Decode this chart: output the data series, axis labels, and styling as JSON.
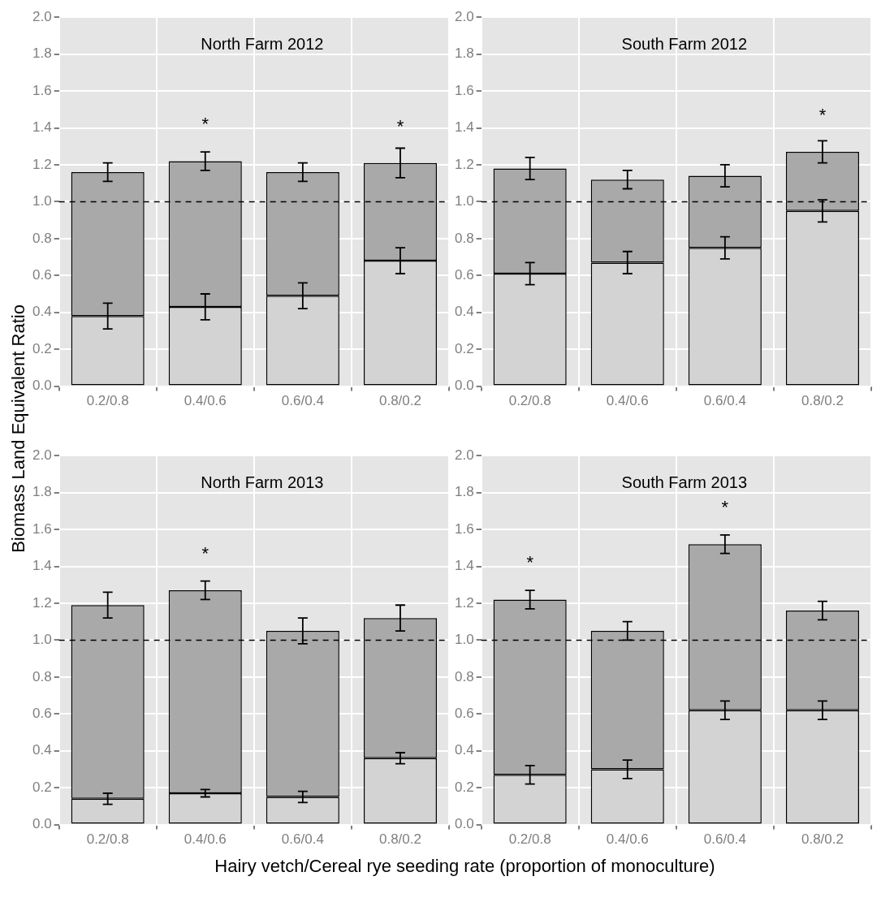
{
  "chart_data": [
    {
      "type": "bar",
      "title": "North Farm 2012",
      "ylabel": "Biomass Land Equivalent Ratio",
      "categories": [
        "0.2/0.8",
        "0.4/0.6",
        "0.6/0.4",
        "0.8/0.2"
      ],
      "stacked": true,
      "grid": true,
      "legend": false,
      "ylim": [
        0,
        2
      ],
      "yticks": [
        {
          "value": 0,
          "label": "0.0"
        },
        0.2,
        0.4,
        0.6,
        0.8,
        {
          "value": 1,
          "label": "1.0"
        },
        1.2,
        1.4,
        1.6,
        1.8,
        {
          "value": 2,
          "label": "2.0"
        }
      ],
      "series": [
        {
          "color": "#d3d3d3",
          "values": [
            0.38,
            0.43,
            0.49,
            0.68
          ],
          "errors": [
            0.07,
            0.07,
            0.07,
            0.07
          ]
        },
        {
          "color": "#a9a9a9",
          "values": [
            0.78,
            0.79,
            0.67,
            0.53
          ],
          "errors": [
            0.05,
            0.05,
            0.05,
            0.08
          ]
        }
      ],
      "ref_lines": [
        {
          "axis": "y",
          "value": 1,
          "line_style": "dashed",
          "color": "#000000"
        }
      ],
      "annotations": [
        {
          "text": "*",
          "x": "0.4/0.6",
          "y": 1.22
        },
        {
          "text": "*",
          "x": "0.8/0.2",
          "y": 1.21
        }
      ]
    },
    {
      "type": "bar",
      "title": "South Farm 2012",
      "categories": [
        "0.2/0.8",
        "0.4/0.6",
        "0.6/0.4",
        "0.8/0.2"
      ],
      "stacked": true,
      "grid": true,
      "legend": false,
      "ylim": [
        0,
        2
      ],
      "yticks": [
        {
          "value": 0,
          "label": "0.0"
        },
        0.2,
        0.4,
        0.6,
        0.8,
        {
          "value": 1,
          "label": "1.0"
        },
        1.2,
        1.4,
        1.6,
        1.8,
        {
          "value": 2,
          "label": "2.0"
        }
      ],
      "series": [
        {
          "color": "#d3d3d3",
          "values": [
            0.61,
            0.67,
            0.75,
            0.95
          ],
          "errors": [
            0.06,
            0.06,
            0.06,
            0.06
          ]
        },
        {
          "color": "#a9a9a9",
          "values": [
            0.57,
            0.45,
            0.39,
            0.32
          ],
          "errors": [
            0.06,
            0.05,
            0.06,
            0.06
          ]
        }
      ],
      "ref_lines": [
        {
          "axis": "y",
          "value": 1,
          "line_style": "dashed",
          "color": "#000000"
        }
      ],
      "annotations": [
        {
          "text": "*",
          "x": "0.8/0.2",
          "y": 1.27
        }
      ]
    },
    {
      "type": "bar",
      "title": "North Farm 2013",
      "xlabel": "Hairy vetch/Cereal rye seeding rate (proportion of monoculture)",
      "categories": [
        "0.2/0.8",
        "0.4/0.6",
        "0.6/0.4",
        "0.8/0.2"
      ],
      "stacked": true,
      "grid": true,
      "legend": false,
      "ylim": [
        0,
        2
      ],
      "yticks": [
        {
          "value": 0,
          "label": "0.0"
        },
        0.2,
        0.4,
        0.6,
        0.8,
        {
          "value": 1,
          "label": "1.0"
        },
        1.2,
        1.4,
        1.6,
        1.8,
        {
          "value": 2,
          "label": "2.0"
        }
      ],
      "series": [
        {
          "color": "#d3d3d3",
          "values": [
            0.14,
            0.17,
            0.15,
            0.36
          ],
          "errors": [
            0.03,
            0.02,
            0.03,
            0.03
          ]
        },
        {
          "color": "#a9a9a9",
          "values": [
            1.05,
            1.1,
            0.9,
            0.76
          ],
          "errors": [
            0.07,
            0.05,
            0.07,
            0.07
          ]
        }
      ],
      "ref_lines": [
        {
          "axis": "y",
          "value": 1,
          "line_style": "dashed",
          "color": "#000000"
        }
      ],
      "annotations": [
        {
          "text": "*",
          "x": "0.4/0.6",
          "y": 1.27
        }
      ]
    },
    {
      "type": "bar",
      "title": "South Farm 2013",
      "categories": [
        "0.2/0.8",
        "0.4/0.6",
        "0.6/0.4",
        "0.8/0.2"
      ],
      "stacked": true,
      "grid": true,
      "legend": false,
      "ylim": [
        0,
        2
      ],
      "yticks": [
        {
          "value": 0,
          "label": "0.0"
        },
        0.2,
        0.4,
        0.6,
        0.8,
        {
          "value": 1,
          "label": "1.0"
        },
        1.2,
        1.4,
        1.6,
        1.8,
        {
          "value": 2,
          "label": "2.0"
        }
      ],
      "series": [
        {
          "color": "#d3d3d3",
          "values": [
            0.27,
            0.3,
            0.62,
            0.62
          ],
          "errors": [
            0.05,
            0.05,
            0.05,
            0.05
          ]
        },
        {
          "color": "#a9a9a9",
          "values": [
            0.95,
            0.75,
            0.9,
            0.54
          ],
          "errors": [
            0.05,
            0.05,
            0.05,
            0.05
          ]
        }
      ],
      "ref_lines": [
        {
          "axis": "y",
          "value": 1,
          "line_style": "dashed",
          "color": "#000000"
        }
      ],
      "annotations": [
        {
          "text": "*",
          "x": "0.2/0.8",
          "y": 1.22
        },
        {
          "text": "*",
          "x": "0.6/0.4",
          "y": 1.52
        }
      ]
    }
  ]
}
